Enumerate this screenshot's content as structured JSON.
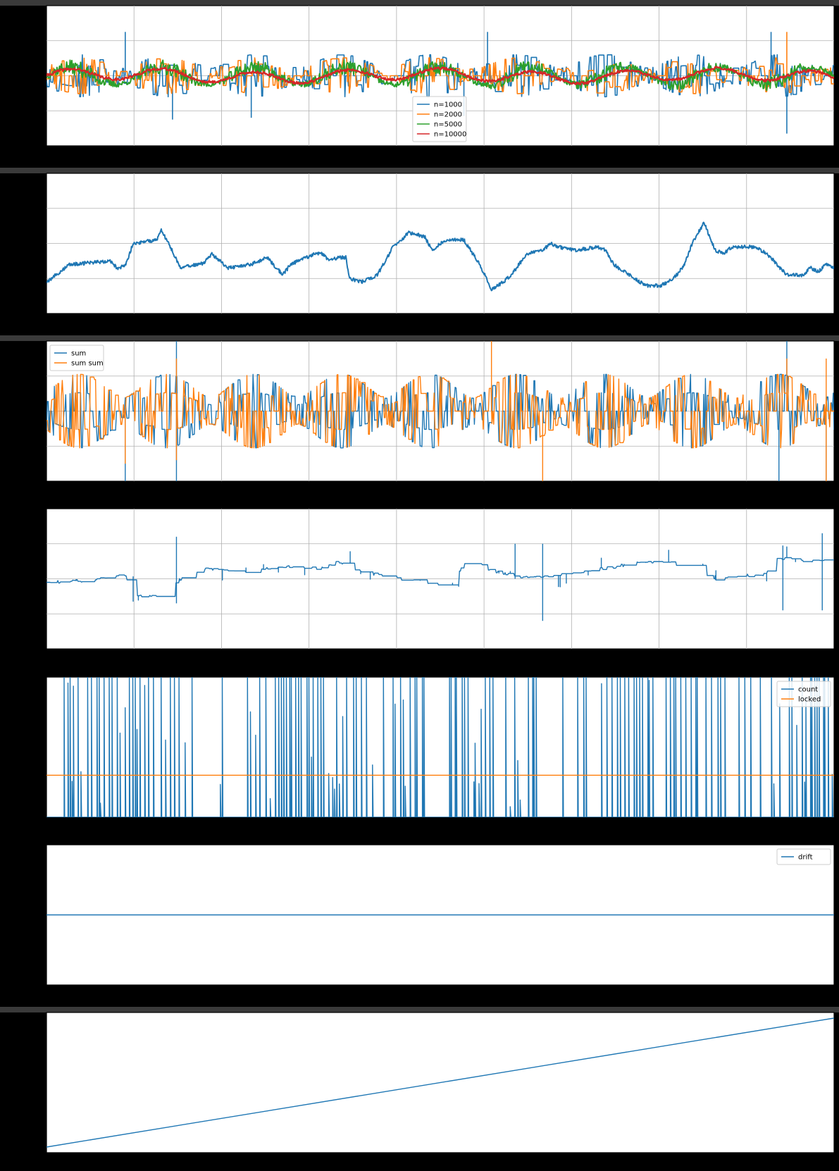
{
  "colors": {
    "background": "#000000",
    "plot_bg": "#ffffff",
    "c0": "#1f77b4",
    "c1": "#ff7f0e",
    "c2": "#2ca02c",
    "c3": "#d62728"
  },
  "chart_data": [
    {
      "type": "line",
      "id": "panel-1",
      "grid": true,
      "legend": "bottom-center",
      "ylim": [
        -4,
        4
      ],
      "series": [
        {
          "name": "n=1000",
          "color": "#1f77b4",
          "signal": "step-noise",
          "amplitude": 1.0,
          "levels": 2,
          "seed": 11,
          "lw": 1.6,
          "spikes": [
            [
              0.1,
              2.5
            ],
            [
              0.16,
              -2.5
            ],
            [
              0.56,
              2.5
            ],
            [
              0.94,
              -3.3
            ],
            [
              0.92,
              2.5
            ],
            [
              0.26,
              -2.4
            ],
            [
              0.53,
              -2.3
            ]
          ]
        },
        {
          "name": "n=2000",
          "color": "#ff7f0e",
          "signal": "step-noise",
          "amplitude": 0.85,
          "levels": 3,
          "seed": 23,
          "lw": 1.6,
          "spikes": [
            [
              0.94,
              2.5
            ],
            [
              0.05,
              -0.8
            ]
          ]
        },
        {
          "name": "n=5000",
          "color": "#2ca02c",
          "signal": "smooth-noise",
          "amplitude": 0.7,
          "seed": 37,
          "lw": 2.0
        },
        {
          "name": "n=10000",
          "color": "#d62728",
          "signal": "smooth",
          "amplitude": 0.45,
          "seed": 41,
          "lw": 2.4
        }
      ]
    },
    {
      "type": "line",
      "id": "panel-2",
      "grid": true,
      "legend": "none",
      "ylim": [
        -1,
        1
      ],
      "series": [
        {
          "name": "",
          "color": "#1f77b4",
          "signal": "random-walk",
          "lw": 2.0,
          "knots": [
            [
              0.0,
              -0.55
            ],
            [
              0.03,
              -0.3
            ],
            [
              0.08,
              -0.25
            ],
            [
              0.09,
              -0.35
            ],
            [
              0.1,
              -0.32
            ],
            [
              0.11,
              0.0
            ],
            [
              0.14,
              0.05
            ],
            [
              0.145,
              0.2
            ],
            [
              0.155,
              0.0
            ],
            [
              0.17,
              -0.35
            ],
            [
              0.2,
              -0.28
            ],
            [
              0.21,
              -0.15
            ],
            [
              0.23,
              -0.35
            ],
            [
              0.26,
              -0.3
            ],
            [
              0.28,
              -0.2
            ],
            [
              0.3,
              -0.45
            ],
            [
              0.31,
              -0.3
            ],
            [
              0.34,
              -0.15
            ],
            [
              0.35,
              -0.15
            ],
            [
              0.36,
              -0.25
            ],
            [
              0.37,
              -0.2
            ],
            [
              0.38,
              -0.2
            ],
            [
              0.38,
              -0.2
            ],
            [
              0.38,
              -0.2
            ],
            [
              0.38,
              -0.2
            ],
            [
              0.385,
              -0.5
            ],
            [
              0.4,
              -0.55
            ],
            [
              0.42,
              -0.45
            ],
            [
              0.44,
              -0.05
            ],
            [
              0.46,
              0.15
            ],
            [
              0.48,
              0.1
            ],
            [
              0.49,
              -0.1
            ],
            [
              0.5,
              0.0
            ],
            [
              0.51,
              0.05
            ],
            [
              0.53,
              0.05
            ],
            [
              0.55,
              -0.3
            ],
            [
              0.565,
              -0.65
            ],
            [
              0.57,
              -0.62
            ],
            [
              0.58,
              -0.55
            ],
            [
              0.59,
              -0.45
            ],
            [
              0.61,
              -0.15
            ],
            [
              0.63,
              -0.1
            ],
            [
              0.64,
              0.0
            ],
            [
              0.65,
              -0.05
            ],
            [
              0.67,
              -0.1
            ],
            [
              0.7,
              -0.05
            ],
            [
              0.71,
              -0.1
            ],
            [
              0.72,
              -0.3
            ],
            [
              0.76,
              -0.6
            ],
            [
              0.78,
              -0.6
            ],
            [
              0.79,
              -0.55
            ],
            [
              0.8,
              -0.45
            ],
            [
              0.81,
              -0.3
            ],
            [
              0.82,
              0.0
            ],
            [
              0.835,
              0.3
            ],
            [
              0.845,
              0.0
            ],
            [
              0.85,
              -0.1
            ],
            [
              0.86,
              -0.15
            ],
            [
              0.87,
              -0.05
            ],
            [
              0.885,
              -0.05
            ],
            [
              0.9,
              -0.05
            ],
            [
              0.915,
              -0.15
            ],
            [
              0.94,
              -0.45
            ],
            [
              0.96,
              -0.45
            ],
            [
              0.97,
              -0.35
            ],
            [
              0.98,
              -0.4
            ],
            [
              0.99,
              -0.3
            ],
            [
              1.0,
              -0.35
            ]
          ]
        }
      ]
    },
    {
      "type": "line",
      "id": "panel-3",
      "grid": true,
      "legend": "upper-left",
      "ylim": [
        -4,
        4
      ],
      "series": [
        {
          "name": "sum",
          "color": "#1f77b4",
          "signal": "bursty-steps",
          "levels": 2,
          "seed": 53,
          "lw": 1.4,
          "spikes": [
            [
              0.1,
              -4.0
            ],
            [
              0.165,
              4.0
            ],
            [
              0.165,
              -4.0
            ],
            [
              0.93,
              -4.0
            ],
            [
              0.94,
              4.0
            ],
            [
              0.99,
              -4.0
            ]
          ]
        },
        {
          "name": "sum sum",
          "color": "#ff7f0e",
          "signal": "bursty-steps",
          "levels": 2,
          "seed": 67,
          "lw": 1.4,
          "spikes": [
            [
              0.165,
              3.0
            ],
            [
              0.1,
              -3.0
            ],
            [
              0.165,
              -2.8
            ],
            [
              0.565,
              4.0
            ],
            [
              0.63,
              -4.0
            ],
            [
              0.94,
              3.0
            ],
            [
              0.99,
              -4.0
            ],
            [
              0.99,
              3.0
            ]
          ]
        }
      ]
    },
    {
      "type": "line",
      "id": "panel-4",
      "grid": true,
      "legend": "none",
      "ylim": [
        -2,
        2
      ],
      "series": [
        {
          "name": "",
          "color": "#1f77b4",
          "signal": "staircase",
          "seed": 71,
          "lw": 1.4,
          "knots": [
            [
              0.0,
              -0.1
            ],
            [
              0.05,
              -0.05
            ],
            [
              0.1,
              0.1
            ],
            [
              0.11,
              -0.5
            ],
            [
              0.15,
              -0.45
            ],
            [
              0.17,
              0.0
            ],
            [
              0.2,
              0.3
            ],
            [
              0.25,
              0.2
            ],
            [
              0.3,
              0.35
            ],
            [
              0.35,
              0.3
            ],
            [
              0.37,
              0.5
            ],
            [
              0.4,
              0.2
            ],
            [
              0.45,
              0.0
            ],
            [
              0.5,
              -0.2
            ],
            [
              0.51,
              -0.3
            ],
            [
              0.53,
              0.4
            ],
            [
              0.55,
              0.4
            ],
            [
              0.57,
              0.2
            ],
            [
              0.6,
              0.05
            ],
            [
              0.65,
              0.1
            ],
            [
              0.68,
              0.2
            ],
            [
              0.71,
              0.3
            ],
            [
              0.75,
              0.45
            ],
            [
              0.79,
              0.5
            ],
            [
              0.82,
              0.15
            ],
            [
              0.85,
              0.0
            ],
            [
              0.88,
              0.1
            ],
            [
              0.91,
              0.1
            ],
            [
              0.93,
              0.6
            ],
            [
              0.96,
              0.5
            ],
            [
              0.99,
              0.5
            ],
            [
              1.0,
              0.4
            ]
          ],
          "spikes": [
            [
              0.165,
              1.2
            ],
            [
              0.165,
              -0.7
            ],
            [
              0.595,
              1.0
            ],
            [
              0.63,
              1.0
            ],
            [
              0.63,
              -1.2
            ],
            [
              0.935,
              0.95
            ],
            [
              0.935,
              -0.9
            ],
            [
              0.985,
              1.3
            ],
            [
              0.985,
              -0.9
            ],
            [
              0.11,
              -0.65
            ]
          ]
        }
      ]
    },
    {
      "type": "line",
      "id": "panel-5",
      "grid": false,
      "legend": "upper-right",
      "ylim": [
        0,
        1
      ],
      "series": [
        {
          "name": "count",
          "color": "#1f77b4",
          "signal": "spike-train",
          "seed": 83,
          "lw": 1.4,
          "gaps": [
            [
              0.225,
              0.255
            ],
            [
              0.48,
              0.51
            ],
            [
              0.64,
              0.655
            ],
            [
              0.77,
              0.785
            ]
          ]
        },
        {
          "name": "locked",
          "color": "#ff7f0e",
          "signal": "constant",
          "value": 0.3,
          "lw": 1.4
        }
      ]
    },
    {
      "type": "line",
      "id": "panel-6",
      "grid": false,
      "legend": "upper-right",
      "ylim": [
        -1,
        1
      ],
      "series": [
        {
          "name": "drift",
          "color": "#1f77b4",
          "signal": "constant",
          "value": 0,
          "lw": 1.4
        }
      ]
    },
    {
      "type": "line",
      "id": "panel-7",
      "grid": false,
      "legend": "none",
      "ylim": [
        0,
        1
      ],
      "series": [
        {
          "name": "",
          "color": "#1f77b4",
          "signal": "linear",
          "from": 0.04,
          "to": 0.96,
          "lw": 1.4
        }
      ]
    }
  ]
}
